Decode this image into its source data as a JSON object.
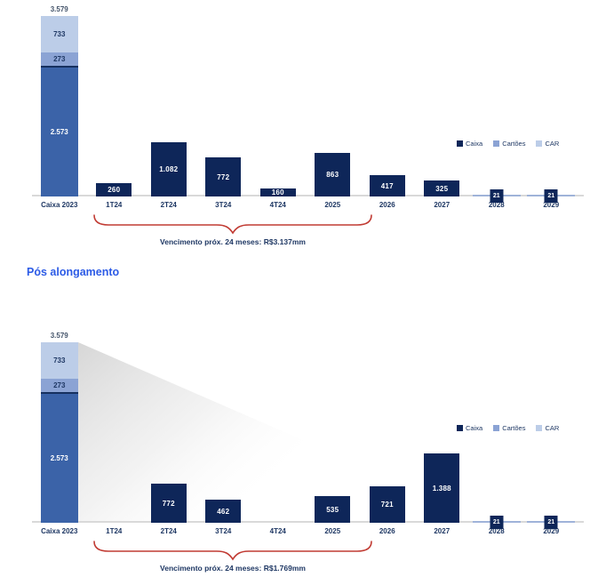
{
  "heading": "Pós alongamento",
  "legend": {
    "items": [
      {
        "label": "Caixa",
        "color": "#0E2659"
      },
      {
        "label": "Cartões",
        "color": "#8BA3D4"
      },
      {
        "label": "CAR",
        "color": "#BCCDE8"
      }
    ]
  },
  "colors": {
    "bar_navy": "#0E2659",
    "caixa_segment_blue": "#3B63A8",
    "cartoes_blue": "#8BA3D4",
    "car_light_blue": "#BCCDE8",
    "axis_line": "#D9D9D9",
    "label_navy": "#1F3864",
    "total_label_gray": "#44546A",
    "brace_red": "#C13B33",
    "heading_blue": "#2C5BE6",
    "tick_line_blue": "#9FB3D9"
  },
  "chart_data": [
    {
      "type": "bar",
      "grid": false,
      "ylim": [
        0,
        3579
      ],
      "legend_entries": [
        "Caixa",
        "Cartões",
        "CAR"
      ],
      "categories": [
        "Caixa 2023",
        "1T24",
        "2T24",
        "3T24",
        "4T24",
        "2025",
        "2026",
        "2027",
        "2028",
        "2029"
      ],
      "stack": {
        "category": "Caixa 2023",
        "total": 3579,
        "total_label": "3.579",
        "segments": [
          {
            "name": "CAR",
            "value": 733,
            "label": "733",
            "color": "#BCCDE8",
            "text_color": "#1F3864"
          },
          {
            "name": "Cartões",
            "value": 273,
            "label": "273",
            "color": "#8BA3D4",
            "text_color": "#1F3864"
          },
          {
            "name": "Caixa",
            "value": 2573,
            "label": "2.573",
            "color": "#3B63A8",
            "text_color": "#FFFFFF",
            "border_top": "#16305F"
          }
        ]
      },
      "values": [
        null,
        260,
        1082,
        772,
        160,
        863,
        417,
        325,
        21,
        21
      ],
      "labels": [
        "",
        "260",
        "1.082",
        "772",
        "160",
        "863",
        "417",
        "325",
        "21",
        "21"
      ],
      "annotation": "Vencimento próx. 24 meses: R$3.137mm",
      "annotation_span": [
        "1T24",
        "2025"
      ]
    },
    {
      "type": "bar",
      "grid": false,
      "ylim": [
        0,
        3579
      ],
      "legend_entries": [
        "Caixa",
        "Cartões",
        "CAR"
      ],
      "categories": [
        "Caixa 2023",
        "1T24",
        "2T24",
        "3T24",
        "4T24",
        "2025",
        "2026",
        "2027",
        "2028",
        "2029"
      ],
      "stack": {
        "category": "Caixa 2023",
        "total": 3579,
        "total_label": "3.579",
        "segments": [
          {
            "name": "CAR",
            "value": 733,
            "label": "733",
            "color": "#BCCDE8",
            "text_color": "#1F3864"
          },
          {
            "name": "Cartões",
            "value": 273,
            "label": "273",
            "color": "#8BA3D4",
            "text_color": "#1F3864"
          },
          {
            "name": "Caixa",
            "value": 2573,
            "label": "2.573",
            "color": "#3B63A8",
            "text_color": "#FFFFFF",
            "border_top": "#16305F"
          }
        ]
      },
      "values": [
        null,
        null,
        772,
        462,
        null,
        535,
        721,
        1388,
        21,
        21
      ],
      "labels": [
        "",
        "",
        "772",
        "462",
        "",
        "535",
        "721",
        "1.388",
        "21",
        "21"
      ],
      "annotation": "Vencimento próx. 24 meses: R$1.769mm",
      "annotation_span": [
        "1T24",
        "2025"
      ]
    }
  ]
}
